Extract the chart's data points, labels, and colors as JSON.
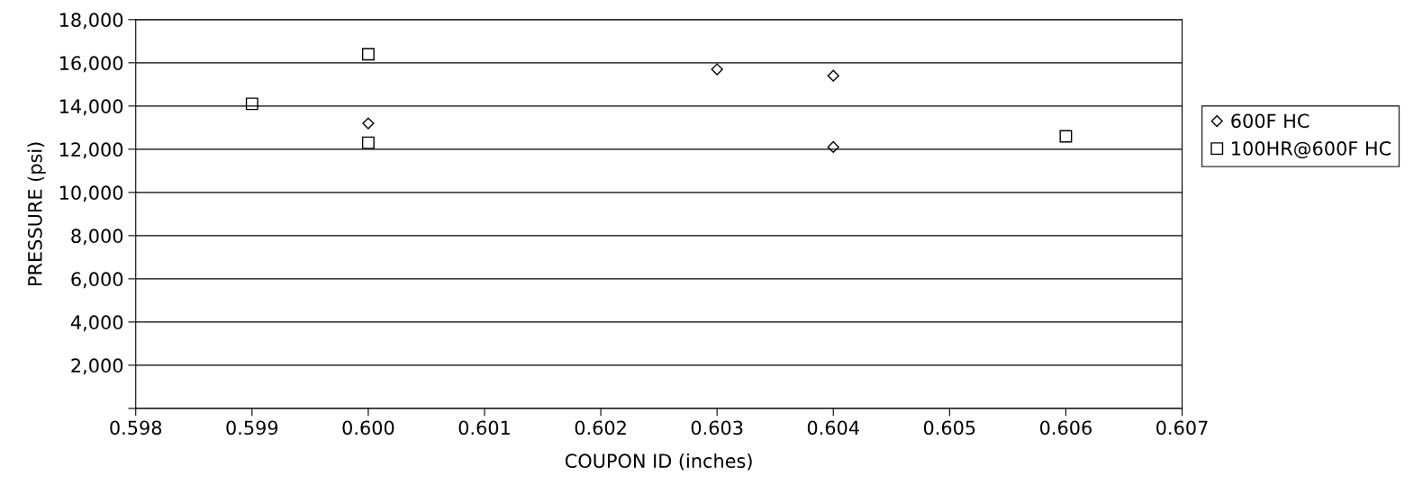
{
  "chart_data": {
    "type": "scatter",
    "xlabel": "COUPON ID (inches)",
    "ylabel": "PRESSURE (psi)",
    "series": [
      {
        "name": "600F HC",
        "color": "#000000",
        "marker": "diamond",
        "x": [
          0.6,
          0.603,
          0.604,
          0.604
        ],
        "values": [
          13200,
          15700,
          15400,
          12100
        ]
      },
      {
        "name": "100HR@600F HC",
        "color": "#000000",
        "marker": "square",
        "x": [
          0.599,
          0.6,
          0.6,
          0.606
        ],
        "values": [
          14100,
          16400,
          12300,
          12600
        ]
      }
    ],
    "xlim": [
      0.598,
      0.607
    ],
    "xticks": [
      {
        "value": 0.598,
        "label": "0.598"
      },
      {
        "value": 0.599,
        "label": "0.599"
      },
      {
        "value": 0.6,
        "label": "0.600"
      },
      {
        "value": 0.601,
        "label": "0.601"
      },
      {
        "value": 0.602,
        "label": "0.602"
      },
      {
        "value": 0.603,
        "label": "0.603"
      },
      {
        "value": 0.604,
        "label": "0.604"
      },
      {
        "value": 0.605,
        "label": "0.605"
      },
      {
        "value": 0.606,
        "label": "0.606"
      },
      {
        "value": 0.607,
        "label": "0.607"
      }
    ],
    "ylim": [
      0,
      18000
    ],
    "yticks": [
      {
        "value": 0,
        "label": null
      },
      {
        "value": 2000,
        "label": "2,000"
      },
      {
        "value": 4000,
        "label": "4,000"
      },
      {
        "value": 6000,
        "label": "6,000"
      },
      {
        "value": 8000,
        "label": "8,000"
      },
      {
        "value": 10000,
        "label": "10,000"
      },
      {
        "value": 12000,
        "label": "12,000"
      },
      {
        "value": 14000,
        "label": "14,000"
      },
      {
        "value": 16000,
        "label": "16,000"
      },
      {
        "value": 18000,
        "label": "18,000"
      }
    ],
    "grid": "y",
    "legend": "right"
  }
}
